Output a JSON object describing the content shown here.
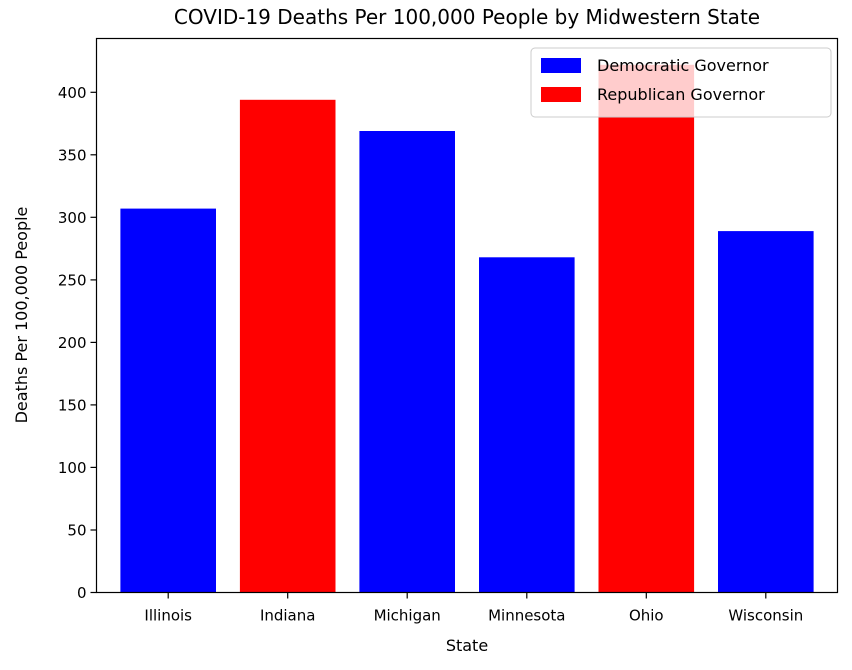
{
  "chart_data": {
    "type": "bar",
    "title": "COVID-19 Deaths Per 100,000 People by Midwestern State",
    "xlabel": "State",
    "ylabel": "Deaths Per 100,000 People",
    "categories": [
      "Illinois",
      "Indiana",
      "Michigan",
      "Minnesota",
      "Ohio",
      "Wisconsin"
    ],
    "values": [
      307,
      394,
      369,
      268,
      422,
      289
    ],
    "bar_groups": [
      "Democratic Governor",
      "Republican Governor",
      "Democratic Governor",
      "Democratic Governor",
      "Republican Governor",
      "Democratic Governor"
    ],
    "ylim": [
      0,
      443
    ],
    "yticks": [
      0,
      50,
      100,
      150,
      200,
      250,
      300,
      350,
      400
    ],
    "grid": false,
    "legend_placement": "top-right",
    "legend": [
      {
        "name": "Democratic Governor",
        "color": "#0000ff"
      },
      {
        "name": "Republican Governor",
        "color": "#ff0000"
      }
    ]
  }
}
